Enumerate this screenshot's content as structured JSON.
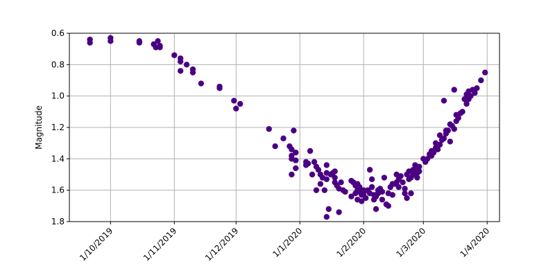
{
  "chart_data": {
    "type": "scatter",
    "title": "",
    "xlabel": "",
    "ylabel": "Magnitude",
    "y_inverted": true,
    "ylim": [
      1.8,
      0.6
    ],
    "xlim": [
      "2019-09-11",
      "2020-04-07"
    ],
    "grid": true,
    "marker_color": "#4b0082",
    "xticks": [
      {
        "value": "2019-10-01",
        "label": "1/10/2019"
      },
      {
        "value": "2019-11-01",
        "label": "1/11/2019"
      },
      {
        "value": "2019-12-01",
        "label": "1/12/2019"
      },
      {
        "value": "2020-01-01",
        "label": "1/1/2020"
      },
      {
        "value": "2020-02-01",
        "label": "1/2/2020"
      },
      {
        "value": "2020-03-01",
        "label": "1/3/2020"
      },
      {
        "value": "2020-04-01",
        "label": "1/4/2020"
      }
    ],
    "yticks": [
      {
        "value": 0.6,
        "label": "0.6"
      },
      {
        "value": 0.8,
        "label": "0.8"
      },
      {
        "value": 1.0,
        "label": "1.0"
      },
      {
        "value": 1.2,
        "label": "1.2"
      },
      {
        "value": 1.4,
        "label": "1.4"
      },
      {
        "value": 1.6,
        "label": "1.6"
      },
      {
        "value": 1.8,
        "label": "1.8"
      }
    ],
    "points": [
      [
        "2019-09-21",
        0.64
      ],
      [
        "2019-09-21",
        0.66
      ],
      [
        "2019-10-01",
        0.63
      ],
      [
        "2019-10-01",
        0.65
      ],
      [
        "2019-10-15",
        0.65
      ],
      [
        "2019-10-15",
        0.66
      ],
      [
        "2019-10-22",
        0.67
      ],
      [
        "2019-10-23",
        0.69
      ],
      [
        "2019-10-24",
        0.65
      ],
      [
        "2019-10-25",
        0.68
      ],
      [
        "2019-10-25",
        0.69
      ],
      [
        "2019-11-01",
        0.74
      ],
      [
        "2019-11-04",
        0.78
      ],
      [
        "2019-11-04",
        0.76
      ],
      [
        "2019-11-04",
        0.84
      ],
      [
        "2019-11-07",
        0.8
      ],
      [
        "2019-11-10",
        0.83
      ],
      [
        "2019-11-10",
        0.85
      ],
      [
        "2019-11-14",
        0.92
      ],
      [
        "2019-11-23",
        0.94
      ],
      [
        "2019-11-23",
        0.95
      ],
      [
        "2019-11-30",
        1.03
      ],
      [
        "2019-12-01",
        1.08
      ],
      [
        "2019-12-03",
        1.05
      ],
      [
        "2019-12-17",
        1.21
      ],
      [
        "2019-12-20",
        1.32
      ],
      [
        "2019-12-24",
        1.27
      ],
      [
        "2019-12-27",
        1.32
      ],
      [
        "2019-12-28",
        1.34
      ],
      [
        "2019-12-28",
        1.38
      ],
      [
        "2019-12-29",
        1.22
      ],
      [
        "2019-12-28",
        1.4
      ],
      [
        "2019-12-28",
        1.5
      ],
      [
        "2019-12-30",
        1.41
      ],
      [
        "2019-12-30",
        1.36
      ],
      [
        "2019-12-30",
        1.46
      ],
      [
        "2020-01-04",
        1.42
      ],
      [
        "2020-01-04",
        1.44
      ],
      [
        "2020-01-05",
        1.43
      ],
      [
        "2020-01-06",
        1.35
      ],
      [
        "2020-01-07",
        1.5
      ],
      [
        "2020-01-08",
        1.42
      ],
      [
        "2020-01-09",
        1.45
      ],
      [
        "2020-01-09",
        1.6
      ],
      [
        "2020-01-10",
        1.47
      ],
      [
        "2020-01-11",
        1.5
      ],
      [
        "2020-01-11",
        1.56
      ],
      [
        "2020-01-12",
        1.52
      ],
      [
        "2020-01-13",
        1.6
      ],
      [
        "2020-01-14",
        1.44
      ],
      [
        "2020-01-14",
        1.49
      ],
      [
        "2020-01-14",
        1.53
      ],
      [
        "2020-01-14",
        1.77
      ],
      [
        "2020-01-15",
        1.72
      ],
      [
        "2020-01-16",
        1.5
      ],
      [
        "2020-01-17",
        1.49
      ],
      [
        "2020-01-18",
        1.52
      ],
      [
        "2020-01-18",
        1.55
      ],
      [
        "2020-01-18",
        1.48
      ],
      [
        "2020-01-19",
        1.57
      ],
      [
        "2020-01-20",
        1.59
      ],
      [
        "2020-01-20",
        1.74
      ],
      [
        "2020-01-21",
        1.55
      ],
      [
        "2020-01-22",
        1.6
      ],
      [
        "2020-01-23",
        1.61
      ],
      [
        "2020-01-26",
        1.54
      ],
      [
        "2020-01-26",
        1.64
      ],
      [
        "2020-01-27",
        1.55
      ],
      [
        "2020-01-28",
        1.62
      ],
      [
        "2020-01-28",
        1.57
      ],
      [
        "2020-01-29",
        1.56
      ],
      [
        "2020-01-29",
        1.6
      ],
      [
        "2020-01-29",
        1.66
      ],
      [
        "2020-01-30",
        1.58
      ],
      [
        "2020-01-30",
        1.61
      ],
      [
        "2020-01-31",
        1.63
      ],
      [
        "2020-01-31",
        1.67
      ],
      [
        "2020-02-01",
        1.6
      ],
      [
        "2020-02-01",
        1.62
      ],
      [
        "2020-02-02",
        1.65
      ],
      [
        "2020-02-03",
        1.6
      ],
      [
        "2020-02-04",
        1.62
      ],
      [
        "2020-02-04",
        1.47
      ],
      [
        "2020-02-05",
        1.53
      ],
      [
        "2020-02-05",
        1.58
      ],
      [
        "2020-02-06",
        1.63
      ],
      [
        "2020-02-06",
        1.66
      ],
      [
        "2020-02-07",
        1.64
      ],
      [
        "2020-02-07",
        1.72
      ],
      [
        "2020-02-08",
        1.6
      ],
      [
        "2020-02-08",
        1.62
      ],
      [
        "2020-02-09",
        1.59
      ],
      [
        "2020-02-10",
        1.61
      ],
      [
        "2020-02-10",
        1.66
      ],
      [
        "2020-02-11",
        1.52
      ],
      [
        "2020-02-12",
        1.69
      ],
      [
        "2020-02-13",
        1.62
      ],
      [
        "2020-02-13",
        1.7
      ],
      [
        "2020-02-14",
        1.58
      ],
      [
        "2020-02-15",
        1.56
      ],
      [
        "2020-02-15",
        1.63
      ],
      [
        "2020-02-16",
        1.56
      ],
      [
        "2020-02-17",
        1.5
      ],
      [
        "2020-02-17",
        1.55
      ],
      [
        "2020-02-18",
        1.53
      ],
      [
        "2020-02-18",
        1.58
      ],
      [
        "2020-02-19",
        1.51
      ],
      [
        "2020-02-20",
        1.55
      ],
      [
        "2020-02-21",
        1.62
      ],
      [
        "2020-02-21",
        1.59
      ],
      [
        "2020-02-22",
        1.5
      ],
      [
        "2020-02-22",
        1.65
      ],
      [
        "2020-02-23",
        1.53
      ],
      [
        "2020-02-23",
        1.48
      ],
      [
        "2020-02-24",
        1.52
      ],
      [
        "2020-02-24",
        1.62
      ],
      [
        "2020-02-25",
        1.47
      ],
      [
        "2020-02-25",
        1.5
      ],
      [
        "2020-02-26",
        1.44
      ],
      [
        "2020-02-26",
        1.47
      ],
      [
        "2020-02-27",
        1.49
      ],
      [
        "2020-02-27",
        1.52
      ],
      [
        "2020-02-28",
        1.45
      ],
      [
        "2020-02-28",
        1.48
      ],
      [
        "2020-03-01",
        1.4
      ],
      [
        "2020-03-02",
        1.42
      ],
      [
        "2020-03-03",
        1.4
      ],
      [
        "2020-03-04",
        1.37
      ],
      [
        "2020-03-05",
        1.38
      ],
      [
        "2020-03-05",
        1.35
      ],
      [
        "2020-03-06",
        1.36
      ],
      [
        "2020-03-07",
        1.33
      ],
      [
        "2020-03-07",
        1.3
      ],
      [
        "2020-03-08",
        1.34
      ],
      [
        "2020-03-09",
        1.31
      ],
      [
        "2020-03-09",
        1.25
      ],
      [
        "2020-03-10",
        1.28
      ],
      [
        "2020-03-11",
        1.27
      ],
      [
        "2020-03-11",
        1.03
      ],
      [
        "2020-03-12",
        1.24
      ],
      [
        "2020-03-12",
        1.22
      ],
      [
        "2020-03-13",
        1.22
      ],
      [
        "2020-03-14",
        1.18
      ],
      [
        "2020-03-14",
        1.29
      ],
      [
        "2020-03-15",
        1.19
      ],
      [
        "2020-03-16",
        0.96
      ],
      [
        "2020-03-16",
        1.21
      ],
      [
        "2020-03-17",
        1.16
      ],
      [
        "2020-03-17",
        1.12
      ],
      [
        "2020-03-18",
        1.14
      ],
      [
        "2020-03-19",
        1.11
      ],
      [
        "2020-03-20",
        1.1
      ],
      [
        "2020-03-21",
        1.02
      ],
      [
        "2020-03-22",
        0.99
      ],
      [
        "2020-03-22",
        1.05
      ],
      [
        "2020-03-23",
        1.02
      ],
      [
        "2020-03-23",
        0.97
      ],
      [
        "2020-03-24",
        1.0
      ],
      [
        "2020-03-25",
        0.96
      ],
      [
        "2020-03-26",
        0.98
      ],
      [
        "2020-03-27",
        0.95
      ],
      [
        "2020-03-29",
        0.9
      ],
      [
        "2020-03-31",
        0.85
      ]
    ]
  }
}
